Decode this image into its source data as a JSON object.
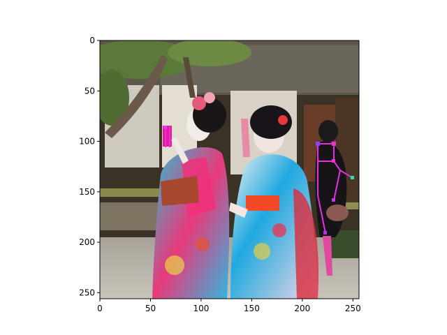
{
  "image": {
    "description_tokens": [
      "photo",
      "kimono",
      "pose-keypoints"
    ],
    "pose_color": "#e62ee6",
    "point_color": "#8844ff"
  },
  "axes": {
    "x_ticks": [
      "0",
      "50",
      "100",
      "150",
      "200",
      "250"
    ],
    "y_ticks": [
      "0",
      "50",
      "100",
      "150",
      "200",
      "250"
    ],
    "x_range": [
      0,
      256
    ],
    "y_range": [
      0,
      256
    ]
  }
}
